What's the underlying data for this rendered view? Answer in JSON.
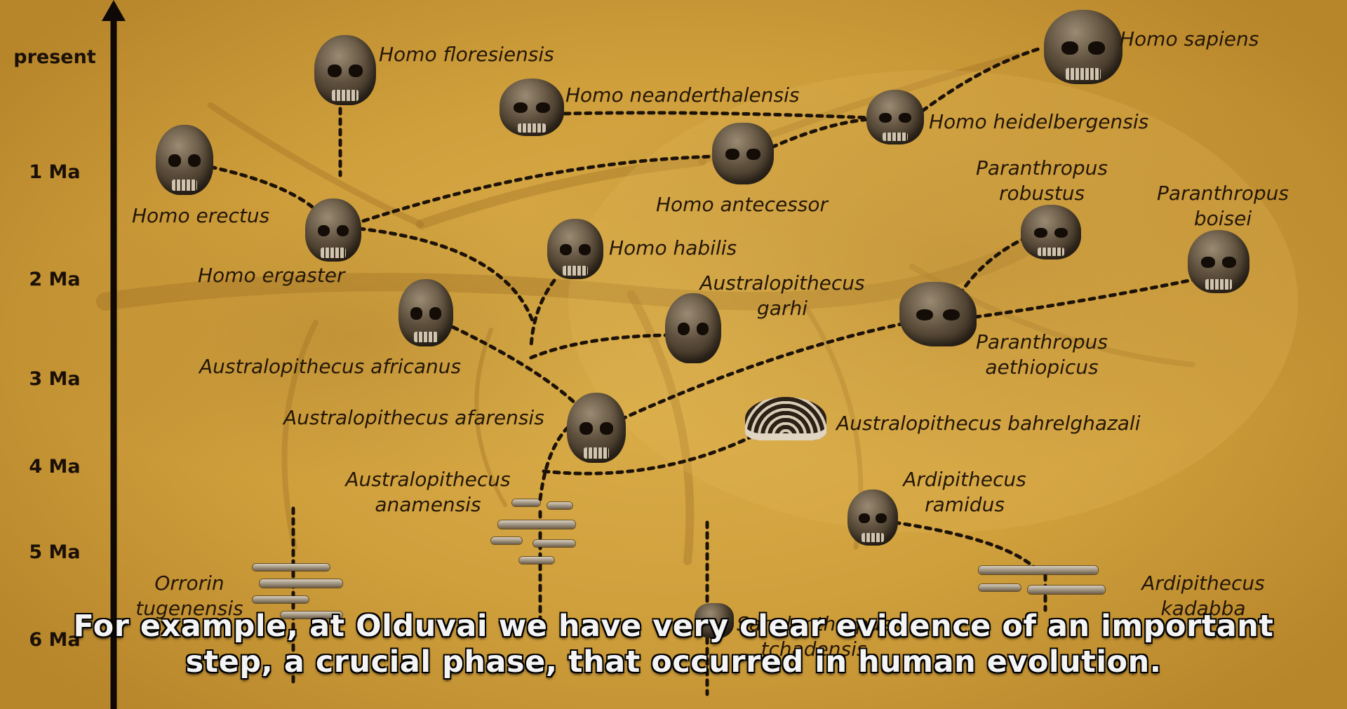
{
  "timeline": {
    "ticks": [
      {
        "label": "present",
        "ma": 0
      },
      {
        "label": "1 Ma",
        "ma": 1
      },
      {
        "label": "2 Ma",
        "ma": 2
      },
      {
        "label": "3 Ma",
        "ma": 3
      },
      {
        "label": "4 Ma",
        "ma": 4
      },
      {
        "label": "5 Ma",
        "ma": 5
      },
      {
        "label": "6 Ma",
        "ma": 6
      }
    ]
  },
  "species": {
    "homo_sapiens": "Homo sapiens",
    "homo_floresiensis": "Homo floresiensis",
    "homo_neanderthalensis": "Homo neanderthalensis",
    "homo_heidelbergensis": "Homo heidelbergensis",
    "homo_erectus": "Homo erectus",
    "homo_antecessor": "Homo antecessor",
    "homo_ergaster": "Homo ergaster",
    "homo_habilis": "Homo habilis",
    "paranthropus_robustus": "Paranthropus robustus",
    "paranthropus_boisei": "Paranthropus boisei",
    "australopithecus_garhi": "Australopithecus garhi",
    "paranthropus_aethiopicus": "Paranthropus aethiopicus",
    "australopithecus_africanus": "Australopithecus africanus",
    "australopithecus_afarensis": "Australopithecus afarensis",
    "australopithecus_bahrelghazali": "Australopithecus bahrelghazali",
    "australopithecus_anamensis": "Australopithecus anamensis",
    "ardipithecus_ramidus": "Ardipithecus ramidus",
    "orrorin_tugenensis": "Orrorin tugenensis",
    "ardipithecus_kadabba": "Ardipithecus kadabba",
    "sahelanthropus_tchadensis": "Sahelanthropus tchadensis"
  },
  "subtitle": {
    "line1": "For example, at Olduvai we have very clear evidence of an important",
    "line2": "step, a crucial phase, that occurred in human evolution."
  },
  "colors": {
    "background": "#d4a544",
    "ink": "#1f1408",
    "subtitle_text": "#f4f4f4"
  }
}
